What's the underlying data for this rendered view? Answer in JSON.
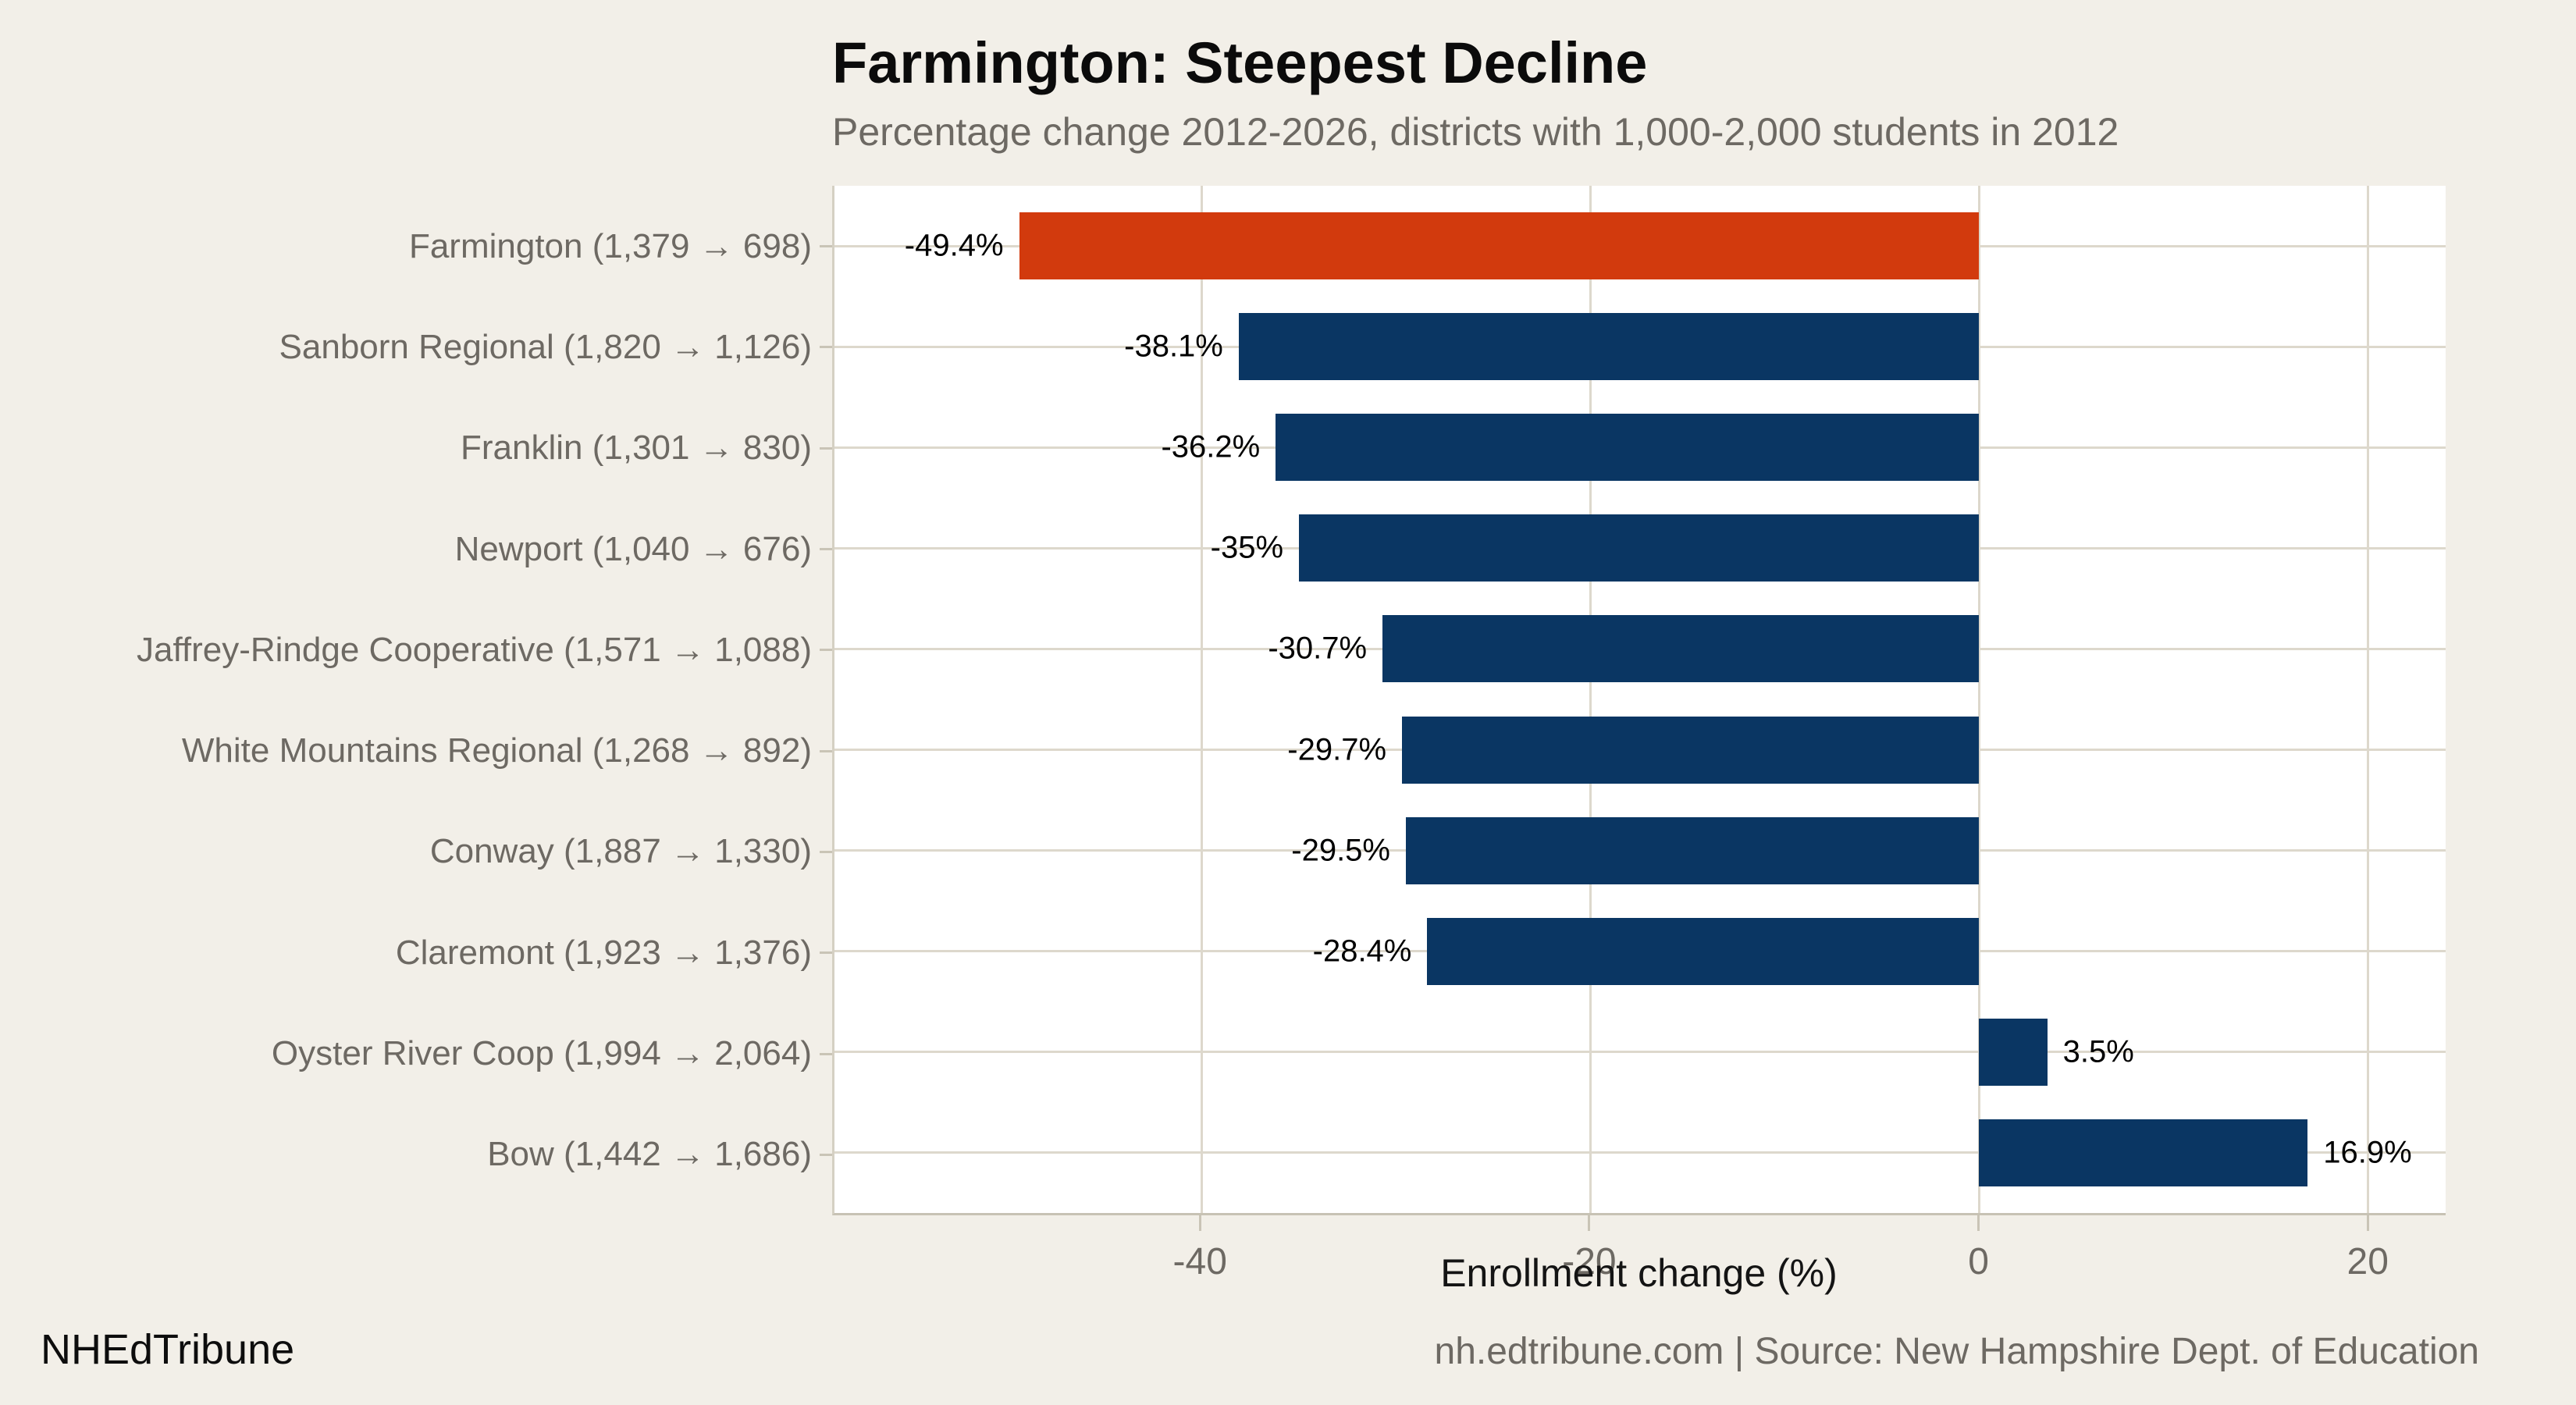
{
  "header": {
    "title": "Farmington: Steepest Decline",
    "subtitle": "Percentage change 2012-2026, districts with 1,000-2,000 students in 2012"
  },
  "footer": {
    "brand": "NHEdTribune",
    "source": "nh.edtribune.com | Source: New Hampshire Dept. of Education"
  },
  "chart_data": {
    "type": "bar",
    "orientation": "horizontal",
    "title": "Farmington: Steepest Decline",
    "subtitle": "Percentage change 2012-2026, districts with 1,000-2,000 students in 2012",
    "xlabel": "Enrollment change (%)",
    "ylabel": "",
    "xlim": [
      -58.9,
      24
    ],
    "xticks": [
      -40,
      -20,
      0,
      20
    ],
    "xtick_labels": [
      "-40",
      "-20",
      "0",
      "20"
    ],
    "grid": true,
    "legend": false,
    "categories": [
      "Farmington (1,379 → 698)",
      "Sanborn Regional (1,820 → 1,126)",
      "Franklin (1,301 → 830)",
      "Newport (1,040 → 676)",
      "Jaffrey-Rindge Cooperative (1,571 → 1,088)",
      "White Mountains Regional (1,268 → 892)",
      "Conway (1,887 → 1,330)",
      "Claremont (1,923 → 1,376)",
      "Oyster River Coop (1,994 → 2,064)",
      "Bow (1,442 → 1,686)"
    ],
    "values": [
      -49.4,
      -38.1,
      -36.2,
      -35,
      -30.7,
      -29.7,
      -29.5,
      -28.4,
      3.5,
      16.9
    ],
    "value_labels": [
      "-49.4%",
      "-38.1%",
      "-36.2%",
      "-35%",
      "-30.7%",
      "-29.7%",
      "-29.5%",
      "-28.4%",
      "3.5%",
      "16.9%"
    ],
    "districts": [
      {
        "name": "Farmington",
        "enrollment_2012": 1379,
        "enrollment_2026": 698,
        "change_pct": -49.4
      },
      {
        "name": "Sanborn Regional",
        "enrollment_2012": 1820,
        "enrollment_2026": 1126,
        "change_pct": -38.1
      },
      {
        "name": "Franklin",
        "enrollment_2012": 1301,
        "enrollment_2026": 830,
        "change_pct": -36.2
      },
      {
        "name": "Newport",
        "enrollment_2012": 1040,
        "enrollment_2026": 676,
        "change_pct": -35
      },
      {
        "name": "Jaffrey-Rindge Cooperative",
        "enrollment_2012": 1571,
        "enrollment_2026": 1088,
        "change_pct": -30.7
      },
      {
        "name": "White Mountains Regional",
        "enrollment_2012": 1268,
        "enrollment_2026": 892,
        "change_pct": -29.7
      },
      {
        "name": "Conway",
        "enrollment_2012": 1887,
        "enrollment_2026": 1330,
        "change_pct": -29.5
      },
      {
        "name": "Claremont",
        "enrollment_2012": 1923,
        "enrollment_2026": 1376,
        "change_pct": -28.4
      },
      {
        "name": "Oyster River Coop",
        "enrollment_2012": 1994,
        "enrollment_2026": 2064,
        "change_pct": 3.5
      },
      {
        "name": "Bow",
        "enrollment_2012": 1442,
        "enrollment_2026": 1686,
        "change_pct": 16.9
      }
    ],
    "highlight_index": 0,
    "highlight_category": "Farmington",
    "colors": {
      "highlight_bar": "#d23a0d",
      "default_bar": "#0a3663",
      "background": "#f2efe8",
      "panel_background": "#ffffff",
      "gridline": "#ddd8cc",
      "axis_line": "#c7c2b4",
      "muted_text": "#6d6963",
      "dark_text": "#000000"
    }
  }
}
